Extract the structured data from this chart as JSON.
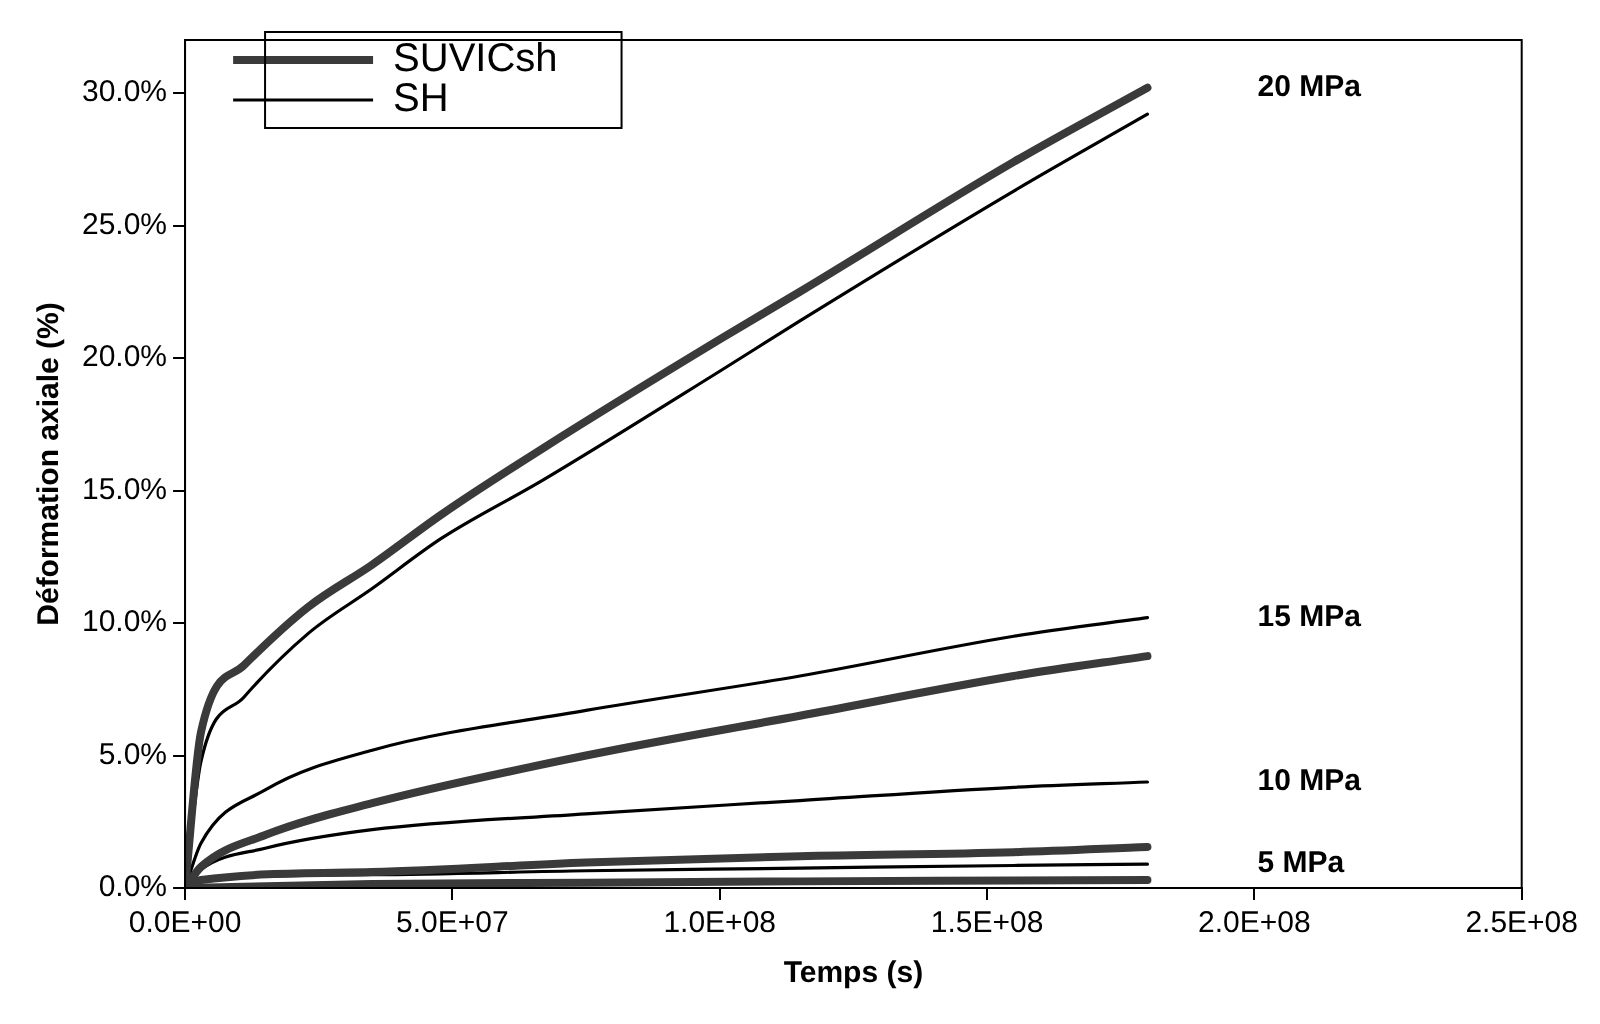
{
  "chart_data": {
    "type": "line",
    "xlabel": "Temps (s)",
    "ylabel": "Déformation axiale (%)",
    "xlim": [
      0,
      250000000
    ],
    "xticks": [
      {
        "value": 0,
        "label": "0.0E+00"
      },
      {
        "value": 50000000,
        "label": "5.0E+07"
      },
      {
        "value": 100000000,
        "label": "1.0E+08"
      },
      {
        "value": 150000000,
        "label": "1.5E+08"
      },
      {
        "value": 200000000,
        "label": "2.0E+08"
      },
      {
        "value": 250000000,
        "label": "2.5E+08"
      }
    ],
    "ylim": [
      0,
      32
    ],
    "yticks": [
      {
        "value": 0,
        "label": "0.0%"
      },
      {
        "value": 5,
        "label": "5.0%"
      },
      {
        "value": 10,
        "label": "10.0%"
      },
      {
        "value": 15,
        "label": "15.0%"
      },
      {
        "value": 20,
        "label": "20.0%"
      },
      {
        "value": 25,
        "label": "25.0%"
      },
      {
        "value": 30,
        "label": "30.0%"
      }
    ],
    "grid": false,
    "legend": "top left",
    "marker": "none",
    "line_style": "solid",
    "series": [
      {
        "name": "SUVICsh",
        "color": "#3a3a3a",
        "x": [
          0,
          3000000,
          11000000,
          23000000,
          35000000,
          48000000,
          67000000,
          100000000,
          115000000,
          155000000,
          180000000
        ],
        "values": [
          0,
          5.9,
          8.4,
          10.6,
          12.2,
          14.1,
          16.6,
          20.7,
          22.5,
          27.4,
          30.2
        ]
      },
      {
        "name": "SH",
        "color": "#000000",
        "x": [
          0,
          3000000,
          11000000,
          23000000,
          35000000,
          48000000,
          67000000,
          100000000,
          115000000,
          155000000,
          180000000
        ],
        "values": [
          0,
          4.8,
          7.2,
          9.6,
          11.3,
          13.2,
          15.4,
          19.5,
          21.4,
          26.3,
          29.2
        ]
      },
      {
        "color": "#3a3a3a",
        "x": [
          0,
          3000000,
          15000000,
          35000000,
          75000000,
          115000000,
          155000000,
          180000000
        ],
        "values": [
          0,
          0.8,
          2.0,
          3.2,
          5.0,
          6.5,
          8.0,
          8.75
        ]
      },
      {
        "color": "#000000",
        "x": [
          0,
          3000000,
          15000000,
          35000000,
          75000000,
          115000000,
          155000000,
          180000000
        ],
        "values": [
          0,
          1.7,
          3.7,
          5.2,
          6.7,
          8.0,
          9.5,
          10.2
        ]
      },
      {
        "color": "#3a3a3a",
        "x": [
          0,
          3000000,
          35000000,
          75000000,
          115000000,
          155000000,
          180000000
        ],
        "values": [
          0,
          0.3,
          0.6,
          0.96,
          1.2,
          1.35,
          1.55
        ]
      },
      {
        "color": "#000000",
        "x": [
          0,
          3000000,
          15000000,
          35000000,
          75000000,
          115000000,
          155000000,
          180000000
        ],
        "values": [
          0,
          0.7,
          1.5,
          2.2,
          2.8,
          3.3,
          3.8,
          4.0
        ]
      },
      {
        "color": "#3a3a3a",
        "x": [
          0,
          35000000,
          75000000,
          115000000,
          155000000,
          180000000
        ],
        "values": [
          0,
          0.15,
          0.2,
          0.25,
          0.28,
          0.3
        ]
      },
      {
        "color": "#000000",
        "x": [
          0,
          3000000,
          35000000,
          75000000,
          115000000,
          155000000,
          180000000
        ],
        "values": [
          0,
          0.3,
          0.5,
          0.65,
          0.75,
          0.85,
          0.9
        ]
      }
    ],
    "annotations": [
      "20 MPa",
      "15 MPa",
      "10 MPa",
      "5 MPa"
    ]
  }
}
